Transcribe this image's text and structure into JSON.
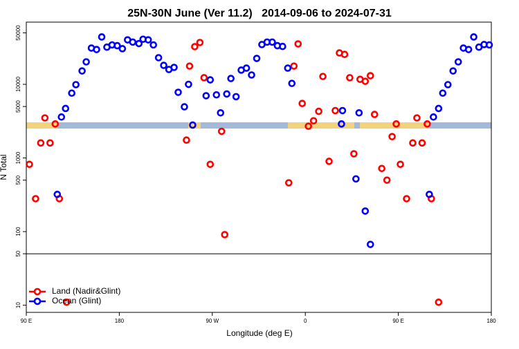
{
  "chart_data": {
    "type": "scatter",
    "title": "25N-30N June (Ver 11.2)   2014-09-06 to 2024-07-31",
    "x_label": "Longitude (deg E)",
    "y_label": "N Total",
    "xlim": [
      90,
      540
    ],
    "xticks": [
      {
        "value": 90,
        "label": "90 E"
      },
      180,
      {
        "value": 270,
        "label": "90 W"
      },
      {
        "value": 360,
        "label": "0"
      },
      {
        "value": 450,
        "label": "90 E"
      },
      {
        "value": 540,
        "label": "180"
      }
    ],
    "ylim": [
      8,
      70000
    ],
    "log_y": true,
    "yticks": [
      10,
      50,
      100,
      500,
      1000,
      5000,
      10000,
      50000
    ],
    "reference_line": 50,
    "legend": "lower left",
    "series": [
      {
        "name": "Land (Nadir&Glint)",
        "color": "#ff0000",
        "x": [
          93,
          99,
          104,
          108,
          113,
          118,
          122,
          129,
          245,
          248,
          253,
          258,
          262,
          268,
          279,
          282,
          344,
          349,
          353,
          357,
          363,
          368,
          373,
          377,
          383,
          389,
          393,
          398,
          403,
          407,
          413,
          418,
          423,
          427,
          434,
          439,
          444,
          448,
          452,
          458,
          464,
          468,
          473,
          478,
          482,
          489
        ],
        "values": [
          820,
          280,
          1600,
          3500,
          1600,
          2900,
          280,
          11,
          1750,
          17700,
          32500,
          37000,
          12300,
          820,
          2300,
          91,
          460,
          17700,
          35400,
          5500,
          2700,
          3200,
          4300,
          12800,
          900,
          4400,
          26700,
          25500,
          12300,
          1140,
          11700,
          11000,
          13100,
          3900,
          720,
          500,
          1950,
          2900,
          820,
          280,
          1600,
          3500,
          1600,
          2900,
          280,
          11
        ]
      },
      {
        "name": "Ocean (Glint)",
        "color": "#0000ff",
        "x": [
          120,
          124,
          128,
          134,
          138,
          144,
          148,
          153,
          158,
          163,
          168,
          173,
          178,
          183,
          188,
          193,
          199,
          203,
          208,
          213,
          218,
          223,
          228,
          233,
          237,
          243,
          247,
          251,
          264,
          268,
          274,
          278,
          284,
          288,
          293,
          298,
          303,
          308,
          313,
          318,
          323,
          328,
          333,
          338,
          343,
          347,
          395,
          396,
          409,
          412,
          418,
          423,
          480,
          484,
          489,
          493,
          498,
          503,
          508,
          513,
          518,
          523,
          528,
          533,
          538
        ],
        "values": [
          320,
          3600,
          4700,
          7600,
          9900,
          15200,
          20200,
          31100,
          29700,
          44000,
          32000,
          34300,
          33500,
          30500,
          40200,
          37500,
          35800,
          41000,
          40200,
          34300,
          23000,
          18100,
          15900,
          17000,
          7800,
          4950,
          10000,
          2800,
          7000,
          11500,
          7200,
          4100,
          7400,
          12000,
          6800,
          15600,
          16600,
          13400,
          22500,
          34700,
          37500,
          37500,
          33500,
          32700,
          16600,
          10300,
          2900,
          4400,
          520,
          4100,
          190,
          67,
          320,
          3600,
          4700,
          7600,
          9900,
          15200,
          20200,
          31100,
          29700,
          44000,
          32000,
          34700,
          34300
        ]
      }
    ]
  }
}
